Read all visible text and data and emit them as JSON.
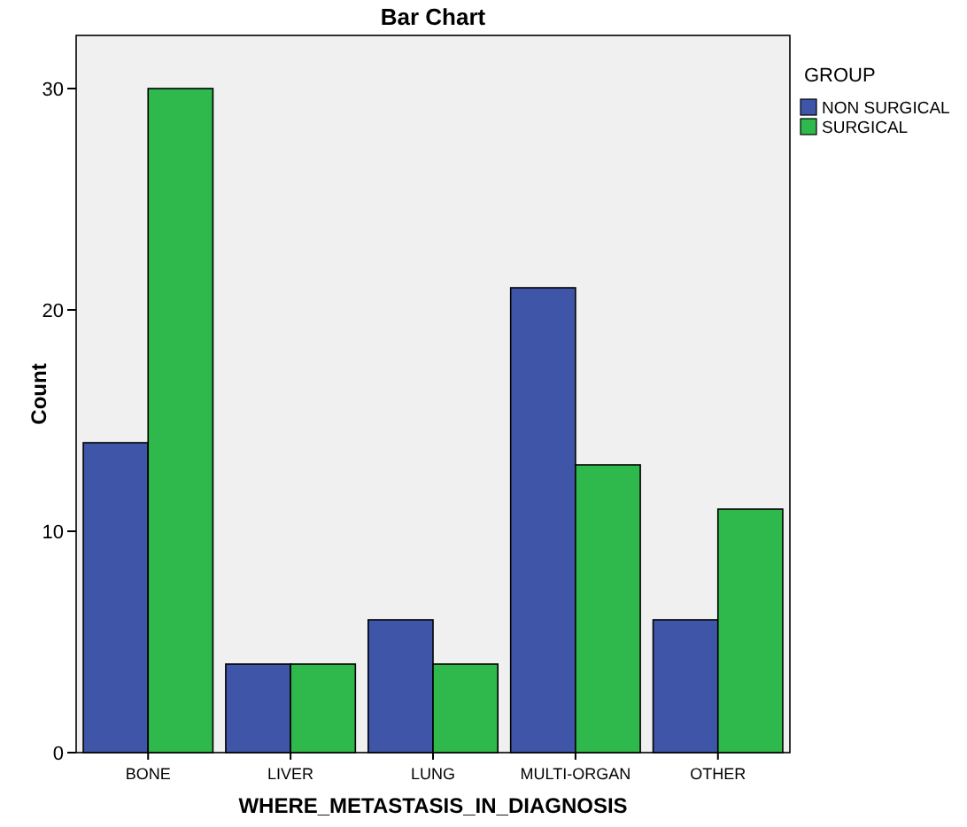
{
  "chart_data": {
    "type": "bar",
    "title": "Bar Chart",
    "xlabel": "WHERE_METASTASIS_IN_DIAGNOSIS",
    "ylabel": "Count",
    "legend_title": "GROUP",
    "categories": [
      "BONE",
      "LIVER",
      "LUNG",
      "MULTI-ORGAN",
      "OTHER"
    ],
    "series": [
      {
        "name": "NON SURGICAL",
        "color": "#3e55a8",
        "values": [
          14,
          4,
          6,
          21,
          6
        ]
      },
      {
        "name": "SURGICAL",
        "color": "#2fb84b",
        "values": [
          30,
          4,
          4,
          13,
          11
        ]
      }
    ],
    "ylim": [
      0,
      32.4
    ],
    "yticks": [
      0,
      10,
      20,
      30
    ],
    "grid": false,
    "legend": "top right"
  }
}
